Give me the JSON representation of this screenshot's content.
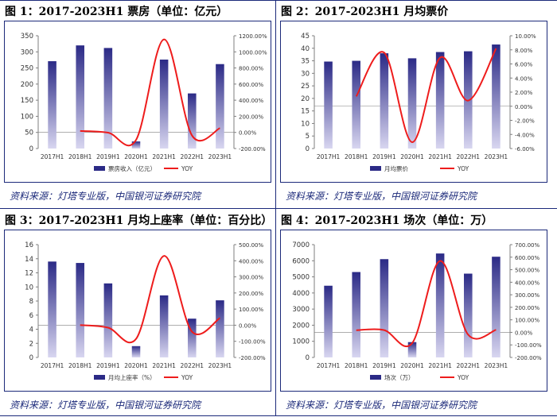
{
  "charts": [
    {
      "title": "图 1：2017-2023H1 票房（单位：亿元）",
      "source": "资料来源：灯塔专业版，中国银河证券研究院",
      "chart_data": {
        "type": "bar",
        "categories": [
          "2017H1",
          "2018H1",
          "2019H1",
          "2020H1",
          "2021H1",
          "2022H1",
          "2023H1"
        ],
        "series": [
          {
            "name": "票房收入（亿元）",
            "type": "bar",
            "axis": "left",
            "values": [
              271,
              320,
              312,
              22,
              276,
              171,
              262
            ]
          },
          {
            "name": "YOY",
            "type": "line",
            "axis": "right",
            "values": [
              null,
              18.08,
              -2.5,
              -92.95,
              1154.5,
              -38.04,
              53.22
            ]
          }
        ],
        "y_left": {
          "min": 0,
          "max": 350,
          "step": 50,
          "ticks": [
            "0",
            "50",
            "100",
            "150",
            "200",
            "250",
            "300",
            "350"
          ]
        },
        "y_right": {
          "min": -200,
          "max": 1200,
          "step": 200,
          "ticks": [
            "-200.00%",
            "0.00%",
            "200.00%",
            "400.00%",
            "600.00%",
            "800.00%",
            "1000.00%",
            "1200.00%"
          ]
        },
        "legend": [
          "票房收入（亿元）",
          "YOY"
        ]
      }
    },
    {
      "title": "图 2：2017-2023H1 月均票价",
      "source": "资料来源：灯塔专业版，中国银河证券研究院",
      "chart_data": {
        "type": "bar",
        "categories": [
          "2017H1",
          "2018H1",
          "2019H1",
          "2020H1",
          "2021H1",
          "2022H1",
          "2023H1"
        ],
        "series": [
          {
            "name": "月均票价",
            "type": "bar",
            "axis": "left",
            "values": [
              34.7,
              35.0,
              38.0,
              36.0,
              38.5,
              38.8,
              41.5
            ]
          },
          {
            "name": "YOY",
            "type": "line",
            "axis": "right",
            "values": [
              null,
              1.4,
              7.6,
              -5.1,
              6.9,
              0.8,
              8.2
            ]
          }
        ],
        "y_left": {
          "min": 0,
          "max": 45,
          "step": 5,
          "ticks": [
            "0",
            "5",
            "10",
            "15",
            "20",
            "25",
            "30",
            "35",
            "40",
            "45"
          ]
        },
        "y_right": {
          "min": -6,
          "max": 10,
          "step": 2,
          "ticks": [
            "-6.00%",
            "-4.00%",
            "-2.00%",
            "0.00%",
            "2.00%",
            "4.00%",
            "6.00%",
            "8.00%",
            "10.00%"
          ]
        },
        "legend": [
          "月均票价",
          "YOY"
        ]
      }
    },
    {
      "title": "图 3：2017-2023H1 月均上座率（单位：百分比）",
      "source": "资料来源：灯塔专业版，中国银河证券研究院",
      "chart_data": {
        "type": "bar",
        "categories": [
          "2017H1",
          "2018H1",
          "2019H1",
          "2020H1",
          "2021H1",
          "2022H1",
          "2023H1"
        ],
        "series": [
          {
            "name": "月均上座率（%）",
            "type": "bar",
            "axis": "left",
            "values": [
              13.6,
              13.4,
              10.5,
              1.6,
              8.8,
              5.5,
              8.1
            ]
          },
          {
            "name": "YOY",
            "type": "line",
            "axis": "right",
            "values": [
              null,
              1.0,
              -15.0,
              -85.0,
              430.0,
              -40.0,
              45.0
            ]
          }
        ],
        "y_left": {
          "min": 0,
          "max": 16,
          "step": 2,
          "ticks": [
            "0",
            "2",
            "4",
            "6",
            "8",
            "10",
            "12",
            "14",
            "16"
          ]
        },
        "y_right": {
          "min": -200,
          "max": 500,
          "step": 100,
          "ticks": [
            "-200.00%",
            "-100.00%",
            "0.00%",
            "100.00%",
            "200.00%",
            "300.00%",
            "400.00%",
            "500.00%"
          ]
        },
        "legend": [
          "月均上座率（%）",
          "YOY"
        ]
      }
    },
    {
      "title": "图 4：2017-2023H1 场次（单位：万）",
      "source": "资料来源：灯塔专业版，中国银河证券研究院",
      "chart_data": {
        "type": "bar",
        "categories": [
          "2017H1",
          "2018H1",
          "2019H1",
          "2020H1",
          "2021H1",
          "2022H1",
          "2023H1"
        ],
        "series": [
          {
            "name": "场次（万）",
            "type": "bar",
            "axis": "left",
            "values": [
              4450,
              5300,
              6100,
              950,
              6450,
              5200,
              6250
            ]
          },
          {
            "name": "YOY",
            "type": "line",
            "axis": "right",
            "values": [
              null,
              17.0,
              18.0,
              -86.0,
              570.0,
              -18.0,
              20.0
            ]
          }
        ],
        "y_left": {
          "min": 0,
          "max": 7000,
          "step": 1000,
          "ticks": [
            "0",
            "1000",
            "2000",
            "3000",
            "4000",
            "5000",
            "6000",
            "7000"
          ]
        },
        "y_right": {
          "min": -200,
          "max": 700,
          "step": 100,
          "ticks": [
            "-200.00%",
            "-100.00%",
            "0.00%",
            "100.00%",
            "200.00%",
            "300.00%",
            "400.00%",
            "500.00%",
            "600.00%",
            "700.00%"
          ]
        },
        "legend": [
          "场次（万）",
          "YOY"
        ]
      }
    }
  ],
  "colors": {
    "bar_top": "#2b2a86",
    "bar_bottom": "#d8d6f0",
    "line": "#ee1c1c",
    "axis": "#7f7f7f",
    "text": "#333333",
    "frame": "#1c2a7a"
  }
}
